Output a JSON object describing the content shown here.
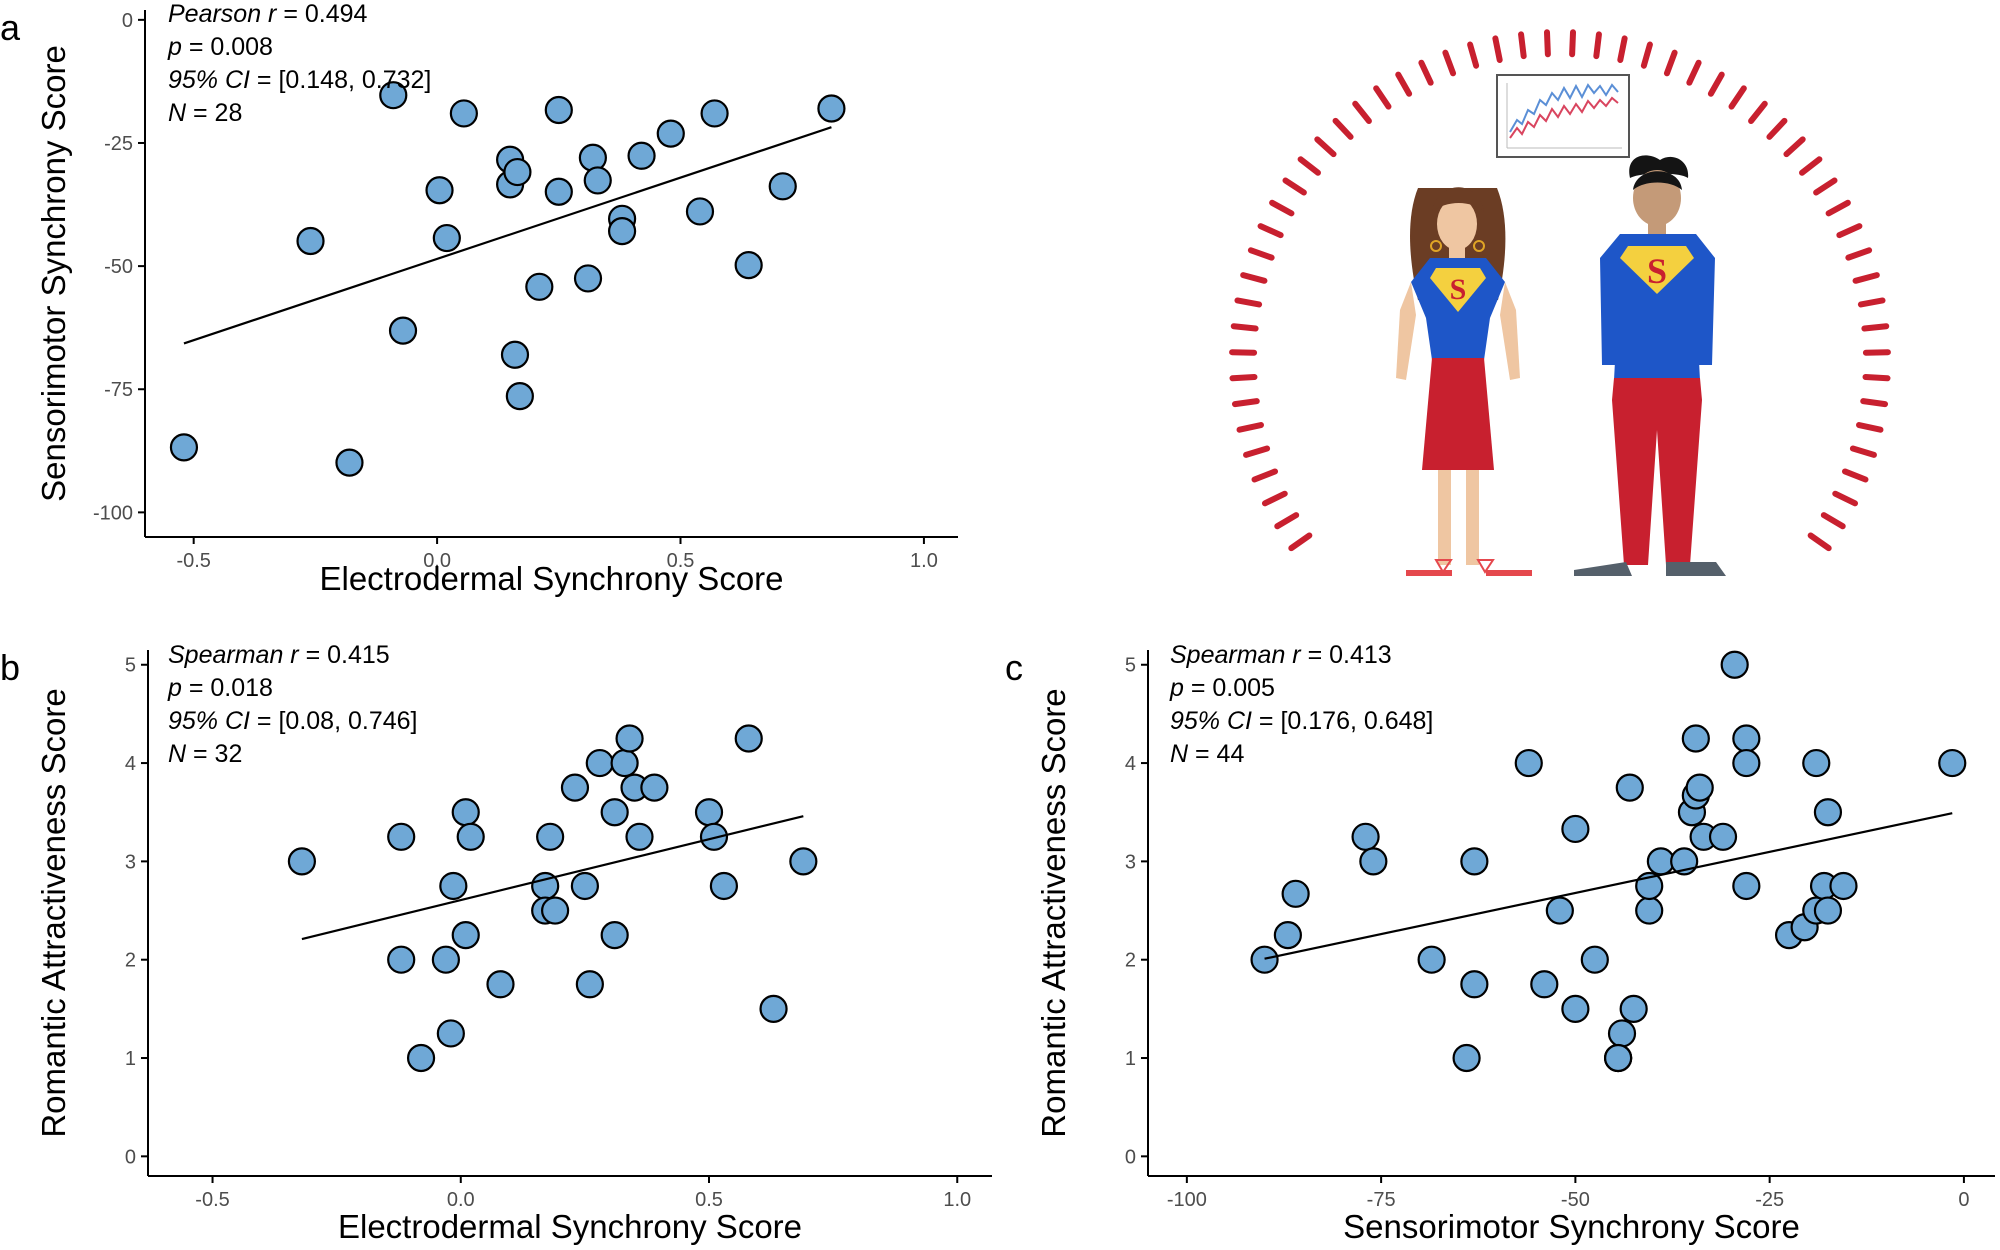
{
  "panel_labels": {
    "a": "a",
    "b": "b",
    "c": "c"
  },
  "colors": {
    "point_fill": "#6fa8d6",
    "point_stroke": "#000000",
    "line": "#000000",
    "axis": "#000000",
    "tick_text": "#4d4d4d",
    "ring_dash": "#c8202f",
    "shirt_blue": "#1e56c8",
    "skirt_red": "#c8202f",
    "emblem_yellow": "#f4d03f"
  },
  "chart_data": [
    {
      "id": "a",
      "type": "scatter",
      "xlabel": "Electrodermal Synchrony Score",
      "ylabel": "Sensorimotor Synchrony Score",
      "xlim": [
        -0.6,
        1.07
      ],
      "ylim": [
        -105,
        2
      ],
      "xticks": [
        -0.5,
        0.0,
        0.5,
        1.0
      ],
      "xtick_labels": [
        "-0.5",
        "0.0",
        "0.5",
        "1.0"
      ],
      "yticks": [
        0,
        -25,
        -50,
        -75,
        -100
      ],
      "ytick_labels": [
        "0",
        "-25",
        "-50",
        "-75",
        "-100"
      ],
      "stats": [
        {
          "italic": "Pearson r",
          "plain": " = 0.494"
        },
        {
          "italic": "p",
          "plain": " = 0.008"
        },
        {
          "italic": "95% CI",
          "plain": " = [0.148, 0.732]"
        },
        {
          "italic": "N",
          "plain": " = 28"
        }
      ],
      "fit": {
        "x": [
          -0.52,
          0.81
        ],
        "y": [
          -65.7,
          -21.8
        ]
      },
      "points": [
        {
          "x": -0.52,
          "y": -86.8
        },
        {
          "x": -0.26,
          "y": -44.9
        },
        {
          "x": -0.18,
          "y": -89.9
        },
        {
          "x": -0.09,
          "y": -15.3
        },
        {
          "x": -0.07,
          "y": -63.1
        },
        {
          "x": 0.005,
          "y": -34.6
        },
        {
          "x": 0.02,
          "y": -44.3
        },
        {
          "x": 0.055,
          "y": -19.0
        },
        {
          "x": 0.15,
          "y": -28.4
        },
        {
          "x": 0.15,
          "y": -33.4
        },
        {
          "x": 0.165,
          "y": -30.9
        },
        {
          "x": 0.16,
          "y": -68.0
        },
        {
          "x": 0.17,
          "y": -76.4
        },
        {
          "x": 0.21,
          "y": -54.2
        },
        {
          "x": 0.25,
          "y": -18.3
        },
        {
          "x": 0.25,
          "y": -34.9
        },
        {
          "x": 0.31,
          "y": -52.5
        },
        {
          "x": 0.32,
          "y": -28.0
        },
        {
          "x": 0.33,
          "y": -32.6
        },
        {
          "x": 0.38,
          "y": -40.4
        },
        {
          "x": 0.38,
          "y": -42.9
        },
        {
          "x": 0.42,
          "y": -27.6
        },
        {
          "x": 0.48,
          "y": -23.1
        },
        {
          "x": 0.54,
          "y": -38.9
        },
        {
          "x": 0.57,
          "y": -19.0
        },
        {
          "x": 0.64,
          "y": -49.8
        },
        {
          "x": 0.71,
          "y": -33.8
        },
        {
          "x": 0.81,
          "y": -18.0
        }
      ]
    },
    {
      "id": "b",
      "type": "scatter",
      "xlabel": "Electrodermal Synchrony Score",
      "ylabel": "Romantic Attractiveness Score",
      "xlim": [
        -0.63,
        1.07
      ],
      "ylim": [
        -0.2,
        5.15
      ],
      "xticks": [
        -0.5,
        0.0,
        0.5,
        1.0
      ],
      "xtick_labels": [
        "-0.5",
        "0.0",
        "0.5",
        "1.0"
      ],
      "yticks": [
        0,
        1,
        2,
        3,
        4,
        5
      ],
      "ytick_labels": [
        "0",
        "1",
        "2",
        "3",
        "4",
        "5"
      ],
      "stats": [
        {
          "italic": "Spearman r",
          "plain": " = 0.415"
        },
        {
          "italic": "p",
          "plain": " = 0.018"
        },
        {
          "italic": "95% CI",
          "plain": " = [0.08, 0.746]"
        },
        {
          "italic": "N",
          "plain": " = 32"
        }
      ],
      "fit": {
        "x": [
          -0.32,
          0.69
        ],
        "y": [
          2.21,
          3.46
        ]
      },
      "points": [
        {
          "x": -0.32,
          "y": 3.0
        },
        {
          "x": -0.12,
          "y": 3.25
        },
        {
          "x": -0.12,
          "y": 2.0
        },
        {
          "x": -0.08,
          "y": 1.0
        },
        {
          "x": -0.03,
          "y": 2.0
        },
        {
          "x": -0.02,
          "y": 1.25
        },
        {
          "x": -0.015,
          "y": 2.75
        },
        {
          "x": 0.01,
          "y": 3.5
        },
        {
          "x": 0.01,
          "y": 2.25
        },
        {
          "x": 0.02,
          "y": 3.25
        },
        {
          "x": 0.08,
          "y": 1.75
        },
        {
          "x": 0.17,
          "y": 2.75
        },
        {
          "x": 0.17,
          "y": 2.5
        },
        {
          "x": 0.18,
          "y": 3.25
        },
        {
          "x": 0.19,
          "y": 2.5
        },
        {
          "x": 0.23,
          "y": 3.75
        },
        {
          "x": 0.25,
          "y": 2.75
        },
        {
          "x": 0.26,
          "y": 1.75
        },
        {
          "x": 0.28,
          "y": 4.0
        },
        {
          "x": 0.31,
          "y": 3.5
        },
        {
          "x": 0.31,
          "y": 2.25
        },
        {
          "x": 0.33,
          "y": 4.0
        },
        {
          "x": 0.34,
          "y": 4.25
        },
        {
          "x": 0.35,
          "y": 3.75
        },
        {
          "x": 0.36,
          "y": 3.25
        },
        {
          "x": 0.39,
          "y": 3.75
        },
        {
          "x": 0.5,
          "y": 3.5
        },
        {
          "x": 0.51,
          "y": 3.25
        },
        {
          "x": 0.53,
          "y": 2.75
        },
        {
          "x": 0.58,
          "y": 4.25
        },
        {
          "x": 0.63,
          "y": 1.5
        },
        {
          "x": 0.69,
          "y": 3.0
        }
      ]
    },
    {
      "id": "c",
      "type": "scatter",
      "xlabel": "Sensorimotor Synchrony Score",
      "ylabel": "Romantic Attractiveness Score",
      "xlim": [
        -105,
        4
      ],
      "ylim": [
        -0.2,
        5.15
      ],
      "xticks": [
        -100,
        -75,
        -50,
        -25,
        0
      ],
      "xtick_labels": [
        "-100",
        "-75",
        "-50",
        "-25",
        "0"
      ],
      "yticks": [
        0,
        1,
        2,
        3,
        4,
        5
      ],
      "ytick_labels": [
        "0",
        "1",
        "2",
        "3",
        "4",
        "5"
      ],
      "stats": [
        {
          "italic": "Spearman r",
          "plain": " = 0.413"
        },
        {
          "italic": "p",
          "plain": " = 0.005"
        },
        {
          "italic": "95% CI",
          "plain": " = [0.176, 0.648]"
        },
        {
          "italic": "N",
          "plain": " = 44"
        }
      ],
      "fit": {
        "x": [
          -90,
          -1.5
        ],
        "y": [
          2.01,
          3.49
        ]
      },
      "points": [
        {
          "x": -90,
          "y": 2.0
        },
        {
          "x": -87,
          "y": 2.25
        },
        {
          "x": -86,
          "y": 2.67
        },
        {
          "x": -77,
          "y": 3.25
        },
        {
          "x": -76,
          "y": 3.0
        },
        {
          "x": -68.5,
          "y": 2.0
        },
        {
          "x": -64,
          "y": 1.0
        },
        {
          "x": -63,
          "y": 1.75
        },
        {
          "x": -63,
          "y": 3.0
        },
        {
          "x": -56,
          "y": 4.0
        },
        {
          "x": -54,
          "y": 1.75
        },
        {
          "x": -52,
          "y": 2.5
        },
        {
          "x": -50,
          "y": 3.33
        },
        {
          "x": -50,
          "y": 1.5
        },
        {
          "x": -47.5,
          "y": 2.0
        },
        {
          "x": -44.5,
          "y": 1.0
        },
        {
          "x": -44.5,
          "y": 1.0
        },
        {
          "x": -44,
          "y": 1.25
        },
        {
          "x": -43,
          "y": 3.75
        },
        {
          "x": -42.5,
          "y": 1.5
        },
        {
          "x": -40.5,
          "y": 2.5
        },
        {
          "x": -40.5,
          "y": 2.75
        },
        {
          "x": -39,
          "y": 3.0
        },
        {
          "x": -36,
          "y": 3.0
        },
        {
          "x": -35,
          "y": 3.5
        },
        {
          "x": -34.5,
          "y": 3.67
        },
        {
          "x": -34.5,
          "y": 4.25
        },
        {
          "x": -34,
          "y": 3.75
        },
        {
          "x": -33.5,
          "y": 3.25
        },
        {
          "x": -31,
          "y": 3.25
        },
        {
          "x": -29.5,
          "y": 5.0
        },
        {
          "x": -28,
          "y": 4.25
        },
        {
          "x": -28,
          "y": 4.0
        },
        {
          "x": -28,
          "y": 2.75
        },
        {
          "x": -22.5,
          "y": 2.25
        },
        {
          "x": -20.5,
          "y": 2.33
        },
        {
          "x": -19,
          "y": 4.0
        },
        {
          "x": -19,
          "y": 2.5
        },
        {
          "x": -18,
          "y": 2.75
        },
        {
          "x": -17.5,
          "y": 3.5
        },
        {
          "x": -17.5,
          "y": 2.5
        },
        {
          "x": -15.5,
          "y": 2.75
        },
        {
          "x": -1.5,
          "y": 4.0
        },
        {
          "x": -44.5,
          "y": 1.0
        }
      ]
    }
  ]
}
